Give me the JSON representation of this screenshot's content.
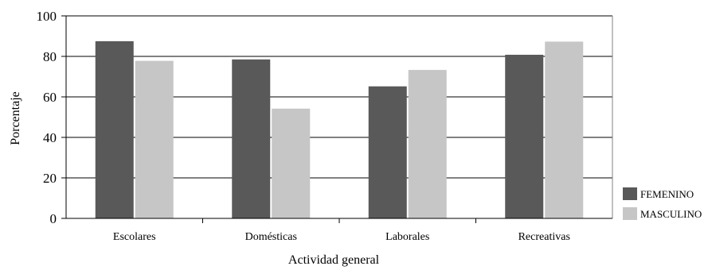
{
  "chart_data": {
    "type": "bar",
    "categories": [
      "Escolares",
      "Domésticas",
      "Laborales",
      "Recreativas"
    ],
    "series": [
      {
        "name": "FEMENINO",
        "values": [
          87.5,
          78.5,
          65.2,
          80.8
        ],
        "color": "#595959"
      },
      {
        "name": "MASCULINO",
        "values": [
          77.8,
          54.2,
          73.3,
          87.3
        ],
        "color": "#c6c6c6"
      }
    ],
    "xlabel": "Actividad general",
    "ylabel": "Porcentaje",
    "ylim": [
      0,
      100
    ],
    "yticks": [
      0,
      20,
      40,
      60,
      80,
      100
    ],
    "grid": true,
    "legend_position": "right"
  }
}
